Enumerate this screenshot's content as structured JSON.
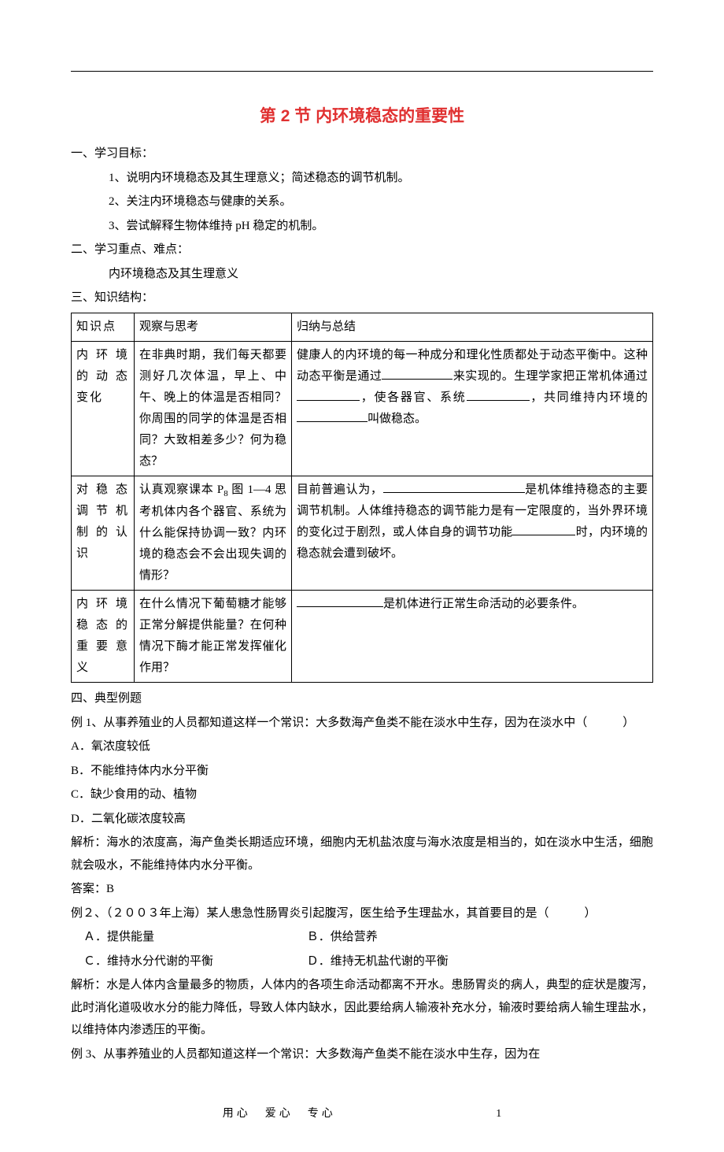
{
  "title": "第 2 节  内环境稳态的重要性",
  "sec1": {
    "head": "一、学习目标：",
    "items": [
      "1、说明内环境稳态及其生理意义；简述稳态的调节机制。",
      "2、关注内环境稳态与健康的关系。",
      "3、尝试解释生物体维持 pH 稳定的机制。"
    ]
  },
  "sec2": {
    "head": "二、学习重点、难点：",
    "text": "内环境稳态及其生理意义"
  },
  "sec3": {
    "head": "三、知识结构：",
    "table": {
      "header": [
        "知识点",
        "观察与思考",
        "归纳与总结"
      ],
      "rows": [
        {
          "k": "内环境的动态变化",
          "o": "在非典时期，我们每天都要测好几次体温，早上、中午、晚上的体温是否相同？你周围的同学的体温是否相同？大致相差多少？何为稳态？",
          "s_parts": [
            "健康人的内环境的每一种成分和理化性质都处于动态平衡中。这种动态平衡是通过",
            "来实现的。生理学家把正常机体通过",
            "，使各器官、系统",
            "，共同维持内环境的",
            "叫做稳态。"
          ],
          "blanks": [
            90,
            80,
            80,
            90
          ]
        },
        {
          "k": "对稳态调节机制的认识",
          "o_html": "认真观察课本 P|8| 图 1—4 思考机体内各个器官、系统为什么能保持协调一致？内环境的稳态会不会出现失调的情形？",
          "s_parts": [
            "目前普遍认为，",
            "是机体维持稳态的主要调节机制。人体维持稳态的调节能力是有一定限度的，当外界环境的变化过于剧烈，或人体自身的调节功能",
            "时，内环境的稳态就会遭到破坏。"
          ],
          "blanks": [
            180,
            80
          ]
        },
        {
          "k": "内环境稳态的重要意义",
          "o": "在什么情况下葡萄糖才能够正常分解提供能量？在何种情况下酶才能正常发挥催化作用？",
          "s_parts": [
            "",
            "是机体进行正常生命活动的必要条件。"
          ],
          "blanks": [
            110
          ]
        }
      ]
    }
  },
  "sec4": {
    "head": "四、典型例题",
    "ex1": {
      "stem": "例 1、从事养殖业的人员都知道这样一个常识：大多数海产鱼类不能在淡水中生存，因为在淡水中（　　　）",
      "opts": [
        "A．氧浓度较低",
        "B．不能维持体内水分平衡",
        "C．缺少食用的动、植物",
        "D．二氧化碳浓度较高"
      ],
      "ana": "解析：海水的浓度高，海产鱼类长期适应环境，细胞内无机盐浓度与海水浓度是相当的，如在淡水中生活，细胞就会吸水，不能维持体内水分平衡。",
      "ans": "答案：B"
    },
    "ex2": {
      "stem": "例２、（２００３年上海）某人患急性肠胃炎引起腹泻，医生给予生理盐水，其首要目的是（　　　）",
      "optA": "Ａ．提供能量",
      "optB": "Ｂ．供给营养",
      "optC": "Ｃ．维持水分代谢的平衡",
      "optD": "Ｄ．维持无机盐代谢的平衡",
      "ana": "解析：水是人体内含量最多的物质，人体内的各项生命活动都离不开水。患肠胃炎的病人，典型的症状是腹泻，此时消化道吸收水分的能力降低，导致人体内缺水，因此要给病人输液补充水分，输液时要给病人输生理盐水，以维持体内渗透压的平衡。"
    },
    "ex3": {
      "stem": "例 3、从事养殖业的人员都知道这样一个常识：大多数海产鱼类不能在淡水中生存，因为在"
    }
  },
  "footer": {
    "motto": "用心　爱心　专心",
    "pageno": "1"
  }
}
